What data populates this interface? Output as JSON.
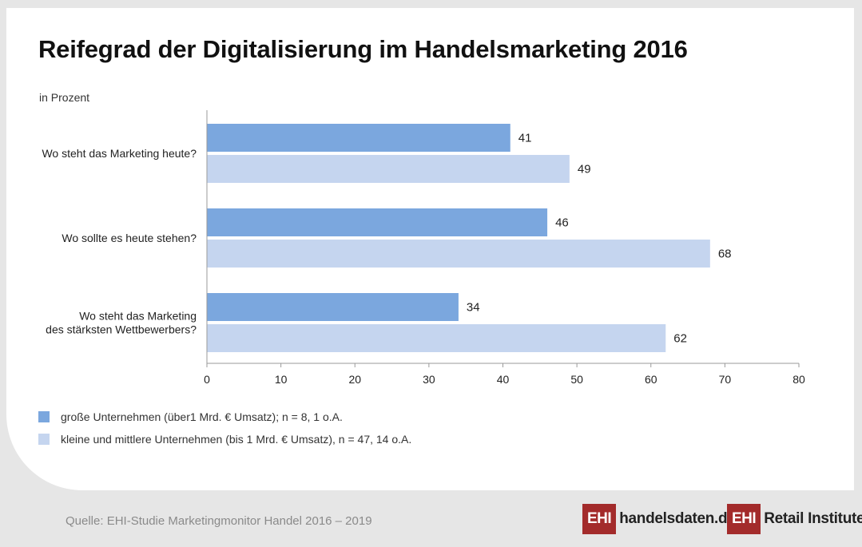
{
  "title": "Reifegrad der Digitalisierung im Handelsmarketing 2016",
  "unit_label": "in Prozent",
  "source": "Quelle: EHI-Studie Marketingmonitor Handel 2016 – 2019",
  "colors": {
    "series_large": "#7ba7de",
    "series_small": "#c5d5ef",
    "logo_red": "#a32b2b"
  },
  "chart_data": {
    "type": "bar",
    "orientation": "horizontal",
    "categories": [
      [
        "Wo steht das Marketing heute?"
      ],
      [
        "Wo sollte es heute stehen?"
      ],
      [
        "Wo steht das Marketing",
        "des stärksten Wettbewerbers?"
      ]
    ],
    "series": [
      {
        "name": "große Unternehmen (über1 Mrd. € Umsatz); n = 8,  1 o.A.",
        "values": [
          41,
          46,
          34
        ],
        "color": "#7ba7de"
      },
      {
        "name": "kleine und mittlere Unternehmen (bis 1 Mrd. € Umsatz), n = 47, 14 o.A.",
        "values": [
          49,
          68,
          62
        ],
        "color": "#c5d5ef"
      }
    ],
    "x_ticks": [
      "0",
      "10",
      "20",
      "30",
      "40",
      "50",
      "60",
      "70",
      "80"
    ],
    "xlim": [
      0,
      80
    ],
    "data_labels": true,
    "grid": false,
    "legend_position": "bottom-left"
  },
  "logos": {
    "logo1": {
      "box": "EHI",
      "text": "handelsdaten.de"
    },
    "logo2": {
      "box": "EHI",
      "text": "Retail Institute",
      "mark": "®"
    }
  }
}
